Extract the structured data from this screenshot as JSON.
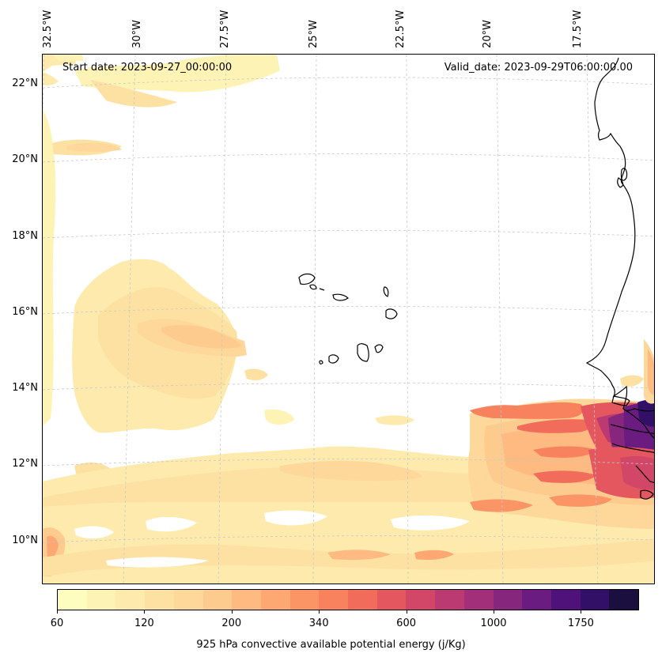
{
  "map": {
    "start_date": "Start date: 2023-09-27_00:00:00",
    "valid_date": "Valid_date: 2023-09-29T06:00:00.00",
    "lon_labels": [
      "32.5°W",
      "30°W",
      "27.5°W",
      "25°W",
      "22.5°W",
      "20°W",
      "17.5°W"
    ],
    "lat_labels": [
      "22°N",
      "20°N",
      "18°N",
      "16°N",
      "14°N",
      "12°N",
      "10°N"
    ],
    "extent": {
      "lon_min": -32.6,
      "lon_max": -15.1,
      "lat_min": 8.9,
      "lat_max": 22.8
    },
    "variable": "925 hPa convective available potential energy",
    "units": "j/Kg"
  },
  "colorbar": {
    "title": "925 hPa convective available potential energy (j/Kg)",
    "tick_labels": [
      "60",
      "120",
      "200",
      "340",
      "600",
      "1000",
      "1750"
    ],
    "levels": [
      60,
      80,
      100,
      120,
      140,
      170,
      200,
      240,
      280,
      340,
      400,
      480,
      600,
      700,
      850,
      1000,
      1200,
      1450,
      1750,
      2100,
      2500
    ],
    "colors": [
      "#fcfdbf",
      "#fcf3b5",
      "#fdeaac",
      "#fde1a3",
      "#fed79a",
      "#fecb8e",
      "#feba80",
      "#fda872",
      "#fc9565",
      "#f8815e",
      "#f16c5a",
      "#e5575f",
      "#d24667",
      "#bb3a71",
      "#a22f79",
      "#87267d",
      "#6a1c80",
      "#4f127b",
      "#331067",
      "#1a0f3e"
    ]
  }
}
